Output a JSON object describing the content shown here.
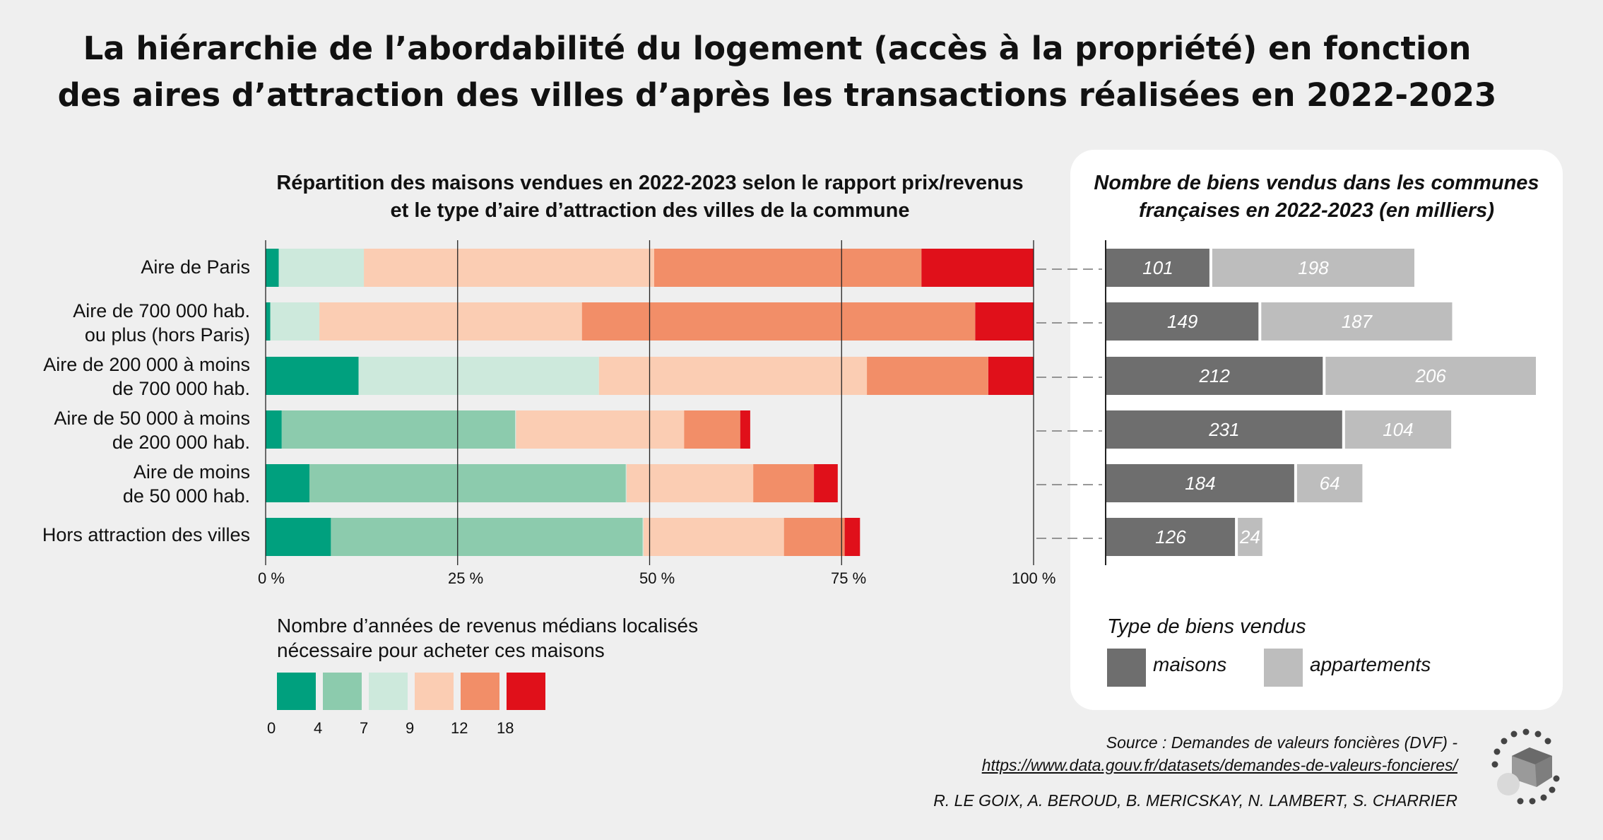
{
  "title": {
    "line1": "La hiérarchie de l’abordabilité du logement (accès à la propriété) en fonction",
    "line2": "des aires d’attraction des villes d’après les transactions réalisées en 2022-2023"
  },
  "left_subtitle": {
    "line1": "Répartition des maisons vendues en 2022-2023 selon le rapport prix/revenus",
    "line2": "et le type d’aire d’attraction des villes de la commune"
  },
  "right_subtitle": {
    "line1": "Nombre de biens vendus dans les communes",
    "line2": "françaises en 2022-2023 (en milliers)"
  },
  "categories": [
    {
      "line1": "Aire de Paris",
      "line2": ""
    },
    {
      "line1": "Aire de 700 000 hab.",
      "line2": "ou plus (hors Paris)"
    },
    {
      "line1": "Aire de 200 000 à moins",
      "line2": "de 700 000 hab."
    },
    {
      "line1": "Aire de 50 000 à moins",
      "line2": "de 200 000 hab."
    },
    {
      "line1": "Aire de moins",
      "line2": "de 50 000 hab."
    },
    {
      "line1": "Hors attraction des villes",
      "line2": ""
    }
  ],
  "legend": {
    "title_line1": "Nombre d’années de revenus médians localisés",
    "title_line2": "nécessaire pour acheter ces maisons",
    "ticks": [
      "0",
      "4",
      "7",
      "9",
      "12",
      "18"
    ],
    "colors": [
      "#00a07e",
      "#8ccbad",
      "#cde9dc",
      "#fbcdb3",
      "#f28e68",
      "#e0101a"
    ]
  },
  "type_legend": {
    "title": "Type de biens vendus",
    "items": [
      {
        "label": "maisons",
        "color": "#6e6e6e"
      },
      {
        "label": "appartements",
        "color": "#bdbdbd"
      }
    ]
  },
  "source": {
    "line1": "Source : Demandes de valeurs foncières (DVF) -",
    "url": "https://www.data.gouv.fr/datasets/demandes-de-valeurs-foncieres/",
    "authors": "R. LE GOIX, A. BEROUD, B. MERICSKAY, N. LAMBERT, S. CHARRIER"
  },
  "chart_data": [
    {
      "type": "bar",
      "stacked": true,
      "orientation": "horizontal",
      "title": "Répartition des maisons vendues en 2022-2023 selon le rapport prix/revenus et le type d’aire d’attraction des villes de la commune",
      "xlim": [
        0,
        100
      ],
      "xticks": [
        "0 %",
        "25 %",
        "50 %",
        "75 %",
        "100 %"
      ],
      "categories": [
        "Aire de Paris",
        "Aire de 700 000 hab. ou plus (hors Paris)",
        "Aire de 200 000 à moins de 700 000 hab.",
        "Aire de 50 000 à moins de 200 000 hab.",
        "Aire de moins de 50 000 hab.",
        "Hors attraction des villes"
      ],
      "series": [
        {
          "name": "0-4",
          "values": [
            1.7,
            0.6,
            12.1,
            2.1,
            5.7,
            8.5
          ]
        },
        {
          "name": "4-7",
          "values": [
            0,
            0,
            0,
            30.4,
            41.2,
            40.6
          ]
        },
        {
          "name": "7-9",
          "values": [
            11.1,
            6.4,
            31.3,
            0.1,
            0.1,
            0.1
          ]
        },
        {
          "name": "9-12",
          "values": [
            37.8,
            34.2,
            34.9,
            21.9,
            16.5,
            18.3
          ]
        },
        {
          "name": "12-18",
          "values": [
            34.8,
            51.2,
            15.8,
            7.3,
            7.9,
            7.9
          ]
        },
        {
          "name": "18+",
          "values": [
            14.6,
            7.6,
            5.9,
            1.3,
            3.1,
            2.0
          ]
        }
      ]
    },
    {
      "type": "bar",
      "stacked": true,
      "orientation": "horizontal",
      "title": "Nombre de biens vendus dans les communes françaises en 2022-2023 (en milliers)",
      "categories": [
        "Aire de Paris",
        "Aire de 700 000 hab. ou plus (hors Paris)",
        "Aire de 200 000 à moins de 700 000 hab.",
        "Aire de 50 000 à moins de 200 000 hab.",
        "Aire de moins de 50 000 hab.",
        "Hors attraction des villes"
      ],
      "series": [
        {
          "name": "maisons",
          "values": [
            101,
            149,
            212,
            231,
            184,
            126
          ]
        },
        {
          "name": "appartements",
          "values": [
            198,
            187,
            206,
            104,
            64,
            24
          ]
        }
      ]
    }
  ]
}
